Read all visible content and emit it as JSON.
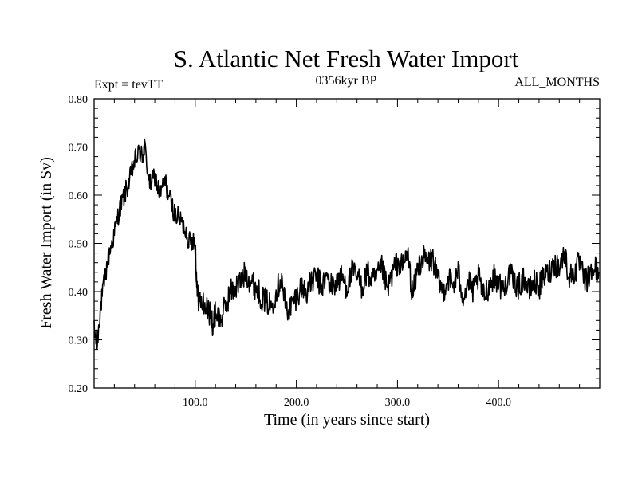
{
  "chart_data": {
    "type": "line",
    "title": "S. Atlantic Net Fresh Water Import",
    "left_label": "Expt = tevTT",
    "center_label": "0356kyr BP",
    "right_label": "ALL_MONTHS",
    "xlabel": "Time (in years since start)",
    "ylabel": "Fresh Water Import (in Sv)",
    "xlim": [
      0,
      500
    ],
    "ylim": [
      0.2,
      0.8
    ],
    "x_ticks": [
      100,
      200,
      300,
      400
    ],
    "x_tick_labels": [
      "100.0",
      "200.0",
      "300.0",
      "400.0"
    ],
    "y_ticks": [
      0.2,
      0.3,
      0.4,
      0.5,
      0.6,
      0.7,
      0.8
    ],
    "y_tick_labels": [
      "0.20",
      "0.30",
      "0.40",
      "0.50",
      "0.60",
      "0.70",
      "0.80"
    ],
    "series": [
      {
        "name": "Net Fresh Water Import",
        "x": [
          0,
          3,
          6,
          10,
          15,
          20,
          25,
          30,
          35,
          40,
          45,
          48,
          50,
          55,
          60,
          65,
          70,
          75,
          80,
          85,
          90,
          95,
          98,
          100,
          102,
          105,
          110,
          115,
          118,
          120,
          125,
          130,
          135,
          140,
          145,
          150,
          155,
          160,
          165,
          170,
          175,
          180,
          185,
          190,
          195,
          200,
          205,
          210,
          215,
          220,
          225,
          230,
          235,
          240,
          245,
          250,
          255,
          260,
          265,
          270,
          275,
          280,
          285,
          290,
          295,
          300,
          305,
          310,
          315,
          320,
          325,
          330,
          335,
          340,
          345,
          350,
          355,
          360,
          365,
          370,
          375,
          380,
          385,
          390,
          395,
          400,
          405,
          410,
          415,
          420,
          425,
          430,
          435,
          440,
          445,
          450,
          455,
          460,
          465,
          470,
          475,
          480,
          485,
          490,
          495,
          499
        ],
        "y": [
          0.32,
          0.29,
          0.36,
          0.42,
          0.48,
          0.52,
          0.57,
          0.6,
          0.63,
          0.67,
          0.69,
          0.68,
          0.7,
          0.62,
          0.64,
          0.6,
          0.63,
          0.59,
          0.56,
          0.55,
          0.53,
          0.5,
          0.51,
          0.5,
          0.39,
          0.38,
          0.37,
          0.35,
          0.33,
          0.36,
          0.34,
          0.37,
          0.4,
          0.41,
          0.42,
          0.44,
          0.42,
          0.41,
          0.39,
          0.38,
          0.37,
          0.4,
          0.43,
          0.36,
          0.37,
          0.39,
          0.41,
          0.4,
          0.42,
          0.43,
          0.41,
          0.43,
          0.41,
          0.42,
          0.43,
          0.41,
          0.44,
          0.43,
          0.41,
          0.44,
          0.42,
          0.43,
          0.45,
          0.4,
          0.44,
          0.46,
          0.45,
          0.48,
          0.39,
          0.45,
          0.47,
          0.46,
          0.47,
          0.42,
          0.4,
          0.43,
          0.41,
          0.44,
          0.39,
          0.42,
          0.4,
          0.43,
          0.39,
          0.41,
          0.43,
          0.42,
          0.4,
          0.44,
          0.42,
          0.41,
          0.43,
          0.4,
          0.42,
          0.41,
          0.43,
          0.44,
          0.46,
          0.45,
          0.48,
          0.43,
          0.44,
          0.46,
          0.42,
          0.43,
          0.45,
          0.44
        ]
      }
    ]
  }
}
